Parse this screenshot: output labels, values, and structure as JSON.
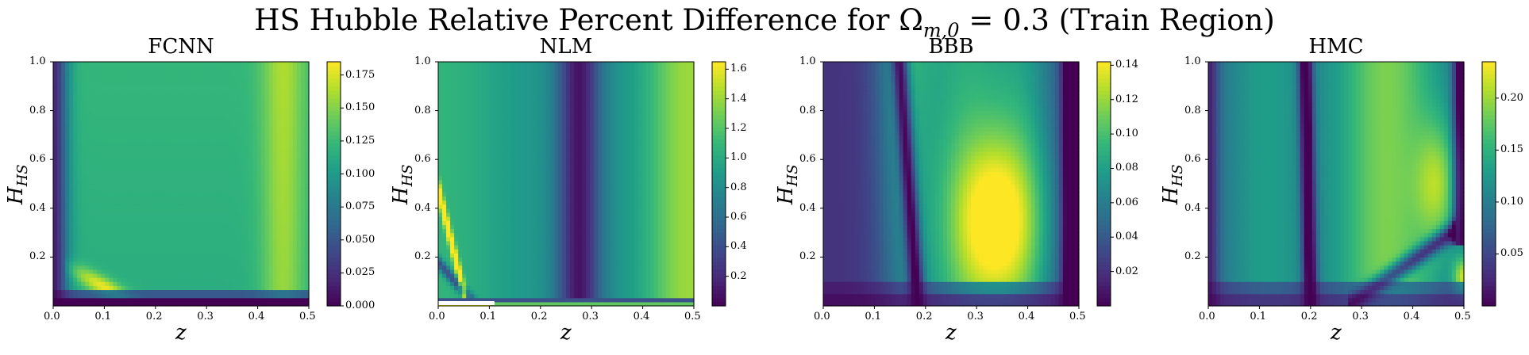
{
  "title": "HS Hubble Relative Percent Difference for Ω_{m,0} = 0.3 (Train Region)",
  "chart_data": [
    {
      "type": "heatmap",
      "title": "FCNN",
      "xlabel": "z",
      "ylabel": "H_HS",
      "xlim": [
        0,
        0.5
      ],
      "ylim": [
        0,
        1.0
      ],
      "x_ticks": [
        "0.0",
        "0.1",
        "0.2",
        "0.3",
        "0.4",
        "0.5"
      ],
      "y_ticks": [
        "0.2",
        "0.4",
        "0.6",
        "0.8",
        "1.0"
      ],
      "colorbar": {
        "min": 0.0,
        "max": 0.185,
        "ticks": [
          "0.000",
          "0.025",
          "0.050",
          "0.075",
          "0.100",
          "0.125",
          "0.150",
          "0.175"
        ],
        "tick_values": [
          0,
          0.025,
          0.05,
          0.075,
          0.1,
          0.125,
          0.15,
          0.175
        ]
      },
      "features": {
        "bright_streak": {
          "z": [
            0.05,
            0.18
          ],
          "H": [
            0.04,
            0.16
          ],
          "value": 0.18
        },
        "right_band": {
          "z": 0.47,
          "value": 0.15
        },
        "bottom_band": {
          "H": 0.01,
          "value": 0.0
        }
      }
    },
    {
      "type": "heatmap",
      "title": "NLM",
      "xlabel": "z",
      "ylabel": "H_HS",
      "xlim": [
        0,
        0.5
      ],
      "ylim": [
        0,
        1.0
      ],
      "x_ticks": [
        "0.0",
        "0.1",
        "0.2",
        "0.3",
        "0.4",
        "0.5"
      ],
      "y_ticks": [
        "0.2",
        "0.4",
        "0.6",
        "0.8",
        "1.0"
      ],
      "colorbar": {
        "min": 0.0,
        "max": 1.65,
        "ticks": [
          "0.2",
          "0.4",
          "0.6",
          "0.8",
          "1.0",
          "1.2",
          "1.4",
          "1.6"
        ],
        "tick_values": [
          0.2,
          0.4,
          0.6,
          0.8,
          1.0,
          1.2,
          1.4,
          1.6
        ]
      },
      "features": {
        "dark_band": {
          "z": 0.28,
          "value": 0.05
        },
        "bright_streak": {
          "z": [
            0.0,
            0.1
          ],
          "H": [
            0.45,
            0.05
          ],
          "value": 1.5
        },
        "right_band": {
          "z": 0.48,
          "value": 1.55
        }
      }
    },
    {
      "type": "heatmap",
      "title": "BBB",
      "xlabel": "z",
      "ylabel": "H_HS",
      "xlim": [
        0,
        0.5
      ],
      "ylim": [
        0,
        1.0
      ],
      "x_ticks": [
        "0.0",
        "0.1",
        "0.2",
        "0.3",
        "0.4",
        "0.5"
      ],
      "y_ticks": [
        "0.2",
        "0.4",
        "0.6",
        "0.8",
        "1.0"
      ],
      "colorbar": {
        "min": 0.0,
        "max": 0.142,
        "ticks": [
          "0.02",
          "0.04",
          "0.06",
          "0.08",
          "0.10",
          "0.12",
          "0.14"
        ],
        "tick_values": [
          0.02,
          0.04,
          0.06,
          0.08,
          0.1,
          0.12,
          0.14
        ]
      },
      "features": {
        "hot_spot": {
          "z": 0.32,
          "H": 0.37,
          "value": 0.14
        },
        "dark_curve": {
          "z": [
            0.12,
            0.17
          ],
          "value": 0.0
        },
        "right_dark_band": {
          "z": 0.48,
          "value": 0.0
        }
      }
    },
    {
      "type": "heatmap",
      "title": "HMC",
      "xlabel": "z",
      "ylabel": "H_HS",
      "xlim": [
        0,
        0.5
      ],
      "ylim": [
        0,
        1.0
      ],
      "x_ticks": [
        "0.0",
        "0.1",
        "0.2",
        "0.3",
        "0.4",
        "0.5"
      ],
      "y_ticks": [
        "0.2",
        "0.4",
        "0.6",
        "0.8",
        "1.0"
      ],
      "colorbar": {
        "min": 0.0,
        "max": 0.235,
        "ticks": [
          "0.05",
          "0.10",
          "0.15",
          "0.20"
        ],
        "tick_values": [
          0.05,
          0.1,
          0.15,
          0.2
        ]
      },
      "features": {
        "hot_spot": {
          "z": 0.45,
          "H": 0.5,
          "value": 0.2
        },
        "corner_spot": {
          "z": 0.5,
          "H": 0.12,
          "value": 0.23
        },
        "dark_curve": {
          "z": [
            0.19,
            0.2
          ],
          "value": 0.0
        }
      }
    }
  ]
}
